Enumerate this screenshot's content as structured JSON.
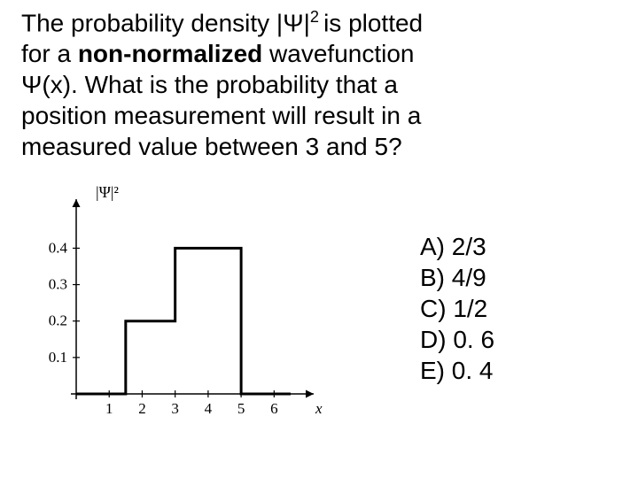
{
  "question": {
    "line1_pre": "The probability density |",
    "psi1": "Ψ",
    "line1_post": "|",
    "sup2": "2 ",
    "line1_end": "is plotted",
    "line2_pre": "for a ",
    "line2_bold": "non-normalized",
    "line2_post": " wavefunction",
    "line3_pre": "Ψ",
    "line3_post": "(x). What is the probability that a",
    "line4": "position measurement will result in a",
    "line5": "measured value between 3 and 5?"
  },
  "answers": {
    "a": "A) 2/3",
    "b": "B) 4/9",
    "c": "C) 1/2",
    "d": "D) 0. 6",
    "e": "E) 0. 4"
  },
  "chart": {
    "y_axis_title": "|Ψ|²",
    "x_axis_title": "x",
    "x_ticks": [
      1,
      2,
      3,
      4,
      5,
      6
    ],
    "y_ticks": [
      0.1,
      0.2,
      0.3,
      0.4
    ],
    "y_tick_labels": [
      "0.1",
      "0.2",
      "0.3",
      "0.4"
    ],
    "xlim": [
      0,
      7.2
    ],
    "ylim": [
      0,
      0.52
    ],
    "steps": [
      {
        "x_from": 0,
        "x_to": 1.5,
        "y": 0
      },
      {
        "x_from": 1.5,
        "x_to": 3,
        "y": 0.2
      },
      {
        "x_from": 3,
        "x_to": 5,
        "y": 0.4
      },
      {
        "x_from": 5,
        "x_to": 6.5,
        "y": 0
      }
    ],
    "colors": {
      "axis": "#000000",
      "wave": "#000000",
      "text": "#000000",
      "background": "#ffffff"
    },
    "line_width_wave": 3,
    "line_width_axis": 1.5,
    "font_size_axis": 17
  }
}
